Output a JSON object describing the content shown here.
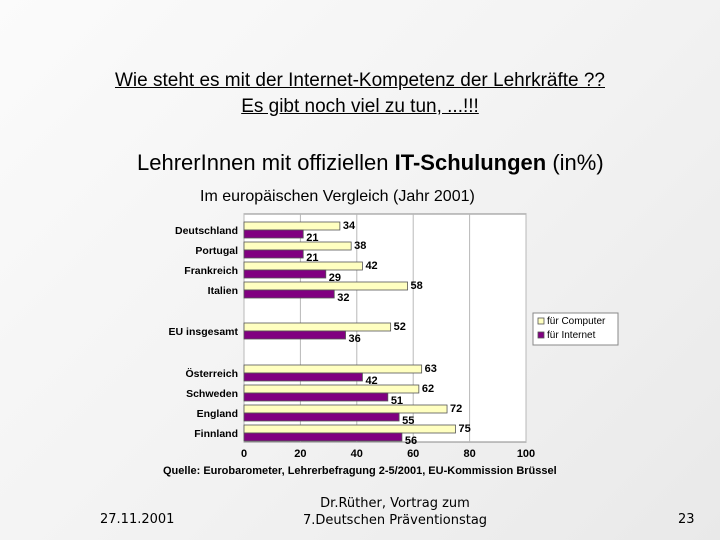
{
  "slide": {
    "title_line1": "Wie steht es mit der Internet-Kompetenz der Lehrkräfte ??",
    "title_line2": "Es gibt noch viel zu tun, ...!!!"
  },
  "chart_data": {
    "type": "bar",
    "orientation": "horizontal",
    "title_part1": "LehrerInnen mit offiziellen ",
    "title_part2": "IT-Schulungen",
    "title_part3": " (in%)",
    "subtitle": "Im europäischen Vergleich (Jahr 2001)",
    "categories": [
      "Deutschland",
      "Portugal",
      "Frankreich",
      "Italien",
      "EU insgesamt",
      "Österreich",
      "Schweden",
      "England",
      "Finnland"
    ],
    "series": [
      {
        "name": "für Computer",
        "color": "#ffffc0",
        "values": [
          34,
          38,
          42,
          58,
          52,
          63,
          62,
          72,
          75
        ]
      },
      {
        "name": "für Internet",
        "color": "#800080",
        "values": [
          21,
          21,
          29,
          32,
          36,
          42,
          51,
          55,
          56
        ]
      }
    ],
    "xlim": [
      0,
      100
    ],
    "xticks": [
      0,
      20,
      40,
      60,
      80,
      100
    ],
    "grid": true,
    "legend_position": "right",
    "source": "Quelle: Eurobarometer, Lehrerbefragung 2-5/2001, EU-Kommission Brüssel"
  },
  "footer": {
    "date": "27.11.2001",
    "center_line1": "Dr.Rüther, Vortrag zum",
    "center_line2": "7.Deutschen Präventionstag",
    "page": "23"
  }
}
